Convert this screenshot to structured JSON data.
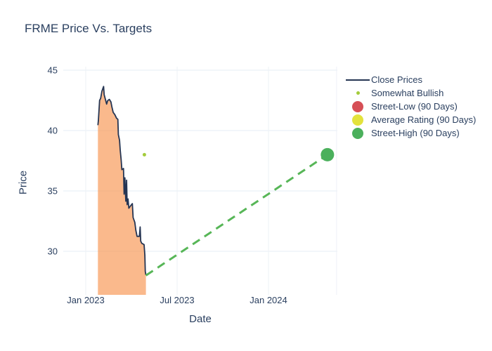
{
  "title": "FRME Price Vs. Targets",
  "axes": {
    "x": {
      "label": "Date",
      "ticks": [
        {
          "m": 0,
          "label": "Jan 2023"
        },
        {
          "m": 6,
          "label": "Jul 2023"
        },
        {
          "m": 12,
          "label": "Jan 2024"
        }
      ],
      "extra_gridline_m": 16.47
    },
    "y": {
      "label": "Price",
      "ticks": [
        45,
        40,
        35,
        30
      ]
    }
  },
  "legend": {
    "items": [
      {
        "label": "Close Prices",
        "marker": "line",
        "color": "#253553"
      },
      {
        "label": "Somewhat Bullish",
        "marker": "dot-small",
        "color": "#a4cc3c"
      },
      {
        "label": "Street-Low (90 Days)",
        "marker": "dot",
        "color": "#d64f56"
      },
      {
        "label": "Average Rating (90 Days)",
        "marker": "dot",
        "color": "#e3e23c"
      },
      {
        "label": "Street-High (90 Days)",
        "marker": "dot",
        "color": "#4bb05c"
      }
    ]
  },
  "chart_data": {
    "type": "line",
    "title": "FRME Price Vs. Targets",
    "xlabel": "Date",
    "ylabel": "Price",
    "x_unit": "months since 2023-01-01",
    "x_tick_labels": [
      "Jan 2023",
      "Jul 2023",
      "Jan 2024"
    ],
    "x_tick_positions": [
      0,
      6,
      12
    ],
    "xlim": [
      -1.48,
      16.52
    ],
    "ylim": [
      26.4,
      45.3
    ],
    "grid": true,
    "legend_position": "right-top",
    "series": [
      {
        "name": "Close Prices",
        "type": "line",
        "color": "#253553",
        "fill": "rgba(247,152,85,0.68)",
        "fill_to": "plot-bottom",
        "points": [
          [
            0.8,
            40.45
          ],
          [
            0.83,
            40.85
          ],
          [
            0.91,
            42.5
          ],
          [
            0.98,
            42.67
          ],
          [
            1.06,
            43.26
          ],
          [
            1.17,
            43.65
          ],
          [
            1.21,
            42.97
          ],
          [
            1.29,
            42.58
          ],
          [
            1.37,
            42.19
          ],
          [
            1.44,
            42.48
          ],
          [
            1.55,
            42.58
          ],
          [
            1.65,
            42.38
          ],
          [
            1.71,
            41.99
          ],
          [
            1.8,
            41.51
          ],
          [
            1.91,
            41.32
          ],
          [
            2.02,
            41.03
          ],
          [
            2.11,
            40.93
          ],
          [
            2.14,
            39.67
          ],
          [
            2.22,
            39.19
          ],
          [
            2.26,
            38.41
          ],
          [
            2.32,
            37.63
          ],
          [
            2.37,
            36.76
          ],
          [
            2.48,
            36.86
          ],
          [
            2.52,
            34.73
          ],
          [
            2.57,
            36.09
          ],
          [
            2.63,
            34.15
          ],
          [
            2.68,
            35.89
          ],
          [
            2.72,
            33.86
          ],
          [
            2.78,
            34.34
          ],
          [
            2.83,
            33.57
          ],
          [
            2.95,
            33.78
          ],
          [
            3.06,
            33.95
          ],
          [
            3.11,
            32.79
          ],
          [
            3.22,
            32.4
          ],
          [
            3.29,
            31.73
          ],
          [
            3.37,
            31.24
          ],
          [
            3.52,
            31.24
          ],
          [
            3.57,
            32.02
          ],
          [
            3.61,
            30.85
          ],
          [
            3.68,
            30.66
          ],
          [
            3.83,
            30.56
          ],
          [
            3.88,
            29.69
          ],
          [
            3.91,
            28.33
          ],
          [
            3.95,
            28.04
          ]
        ]
      },
      {
        "name": "Somewhat Bullish",
        "type": "scatter",
        "color": "#a4cc3c",
        "marker_diameter_px": 5,
        "points": [
          [
            3.85,
            38.0
          ]
        ]
      },
      {
        "name": "Street-Low (90 Days)",
        "type": "scatter",
        "color": "#d64f56",
        "points": []
      },
      {
        "name": "Average Rating (90 Days)",
        "type": "scatter",
        "color": "#e3e23c",
        "points": []
      },
      {
        "name": "Street-High (90 Days)",
        "type": "line+marker",
        "color": "#4bb05c",
        "line_color": "#57b657",
        "line_dash": "dashed",
        "marker_diameter_px": 19,
        "marker_on": "last",
        "points": [
          [
            3.95,
            28.0
          ],
          [
            15.87,
            38.0
          ]
        ]
      }
    ]
  }
}
